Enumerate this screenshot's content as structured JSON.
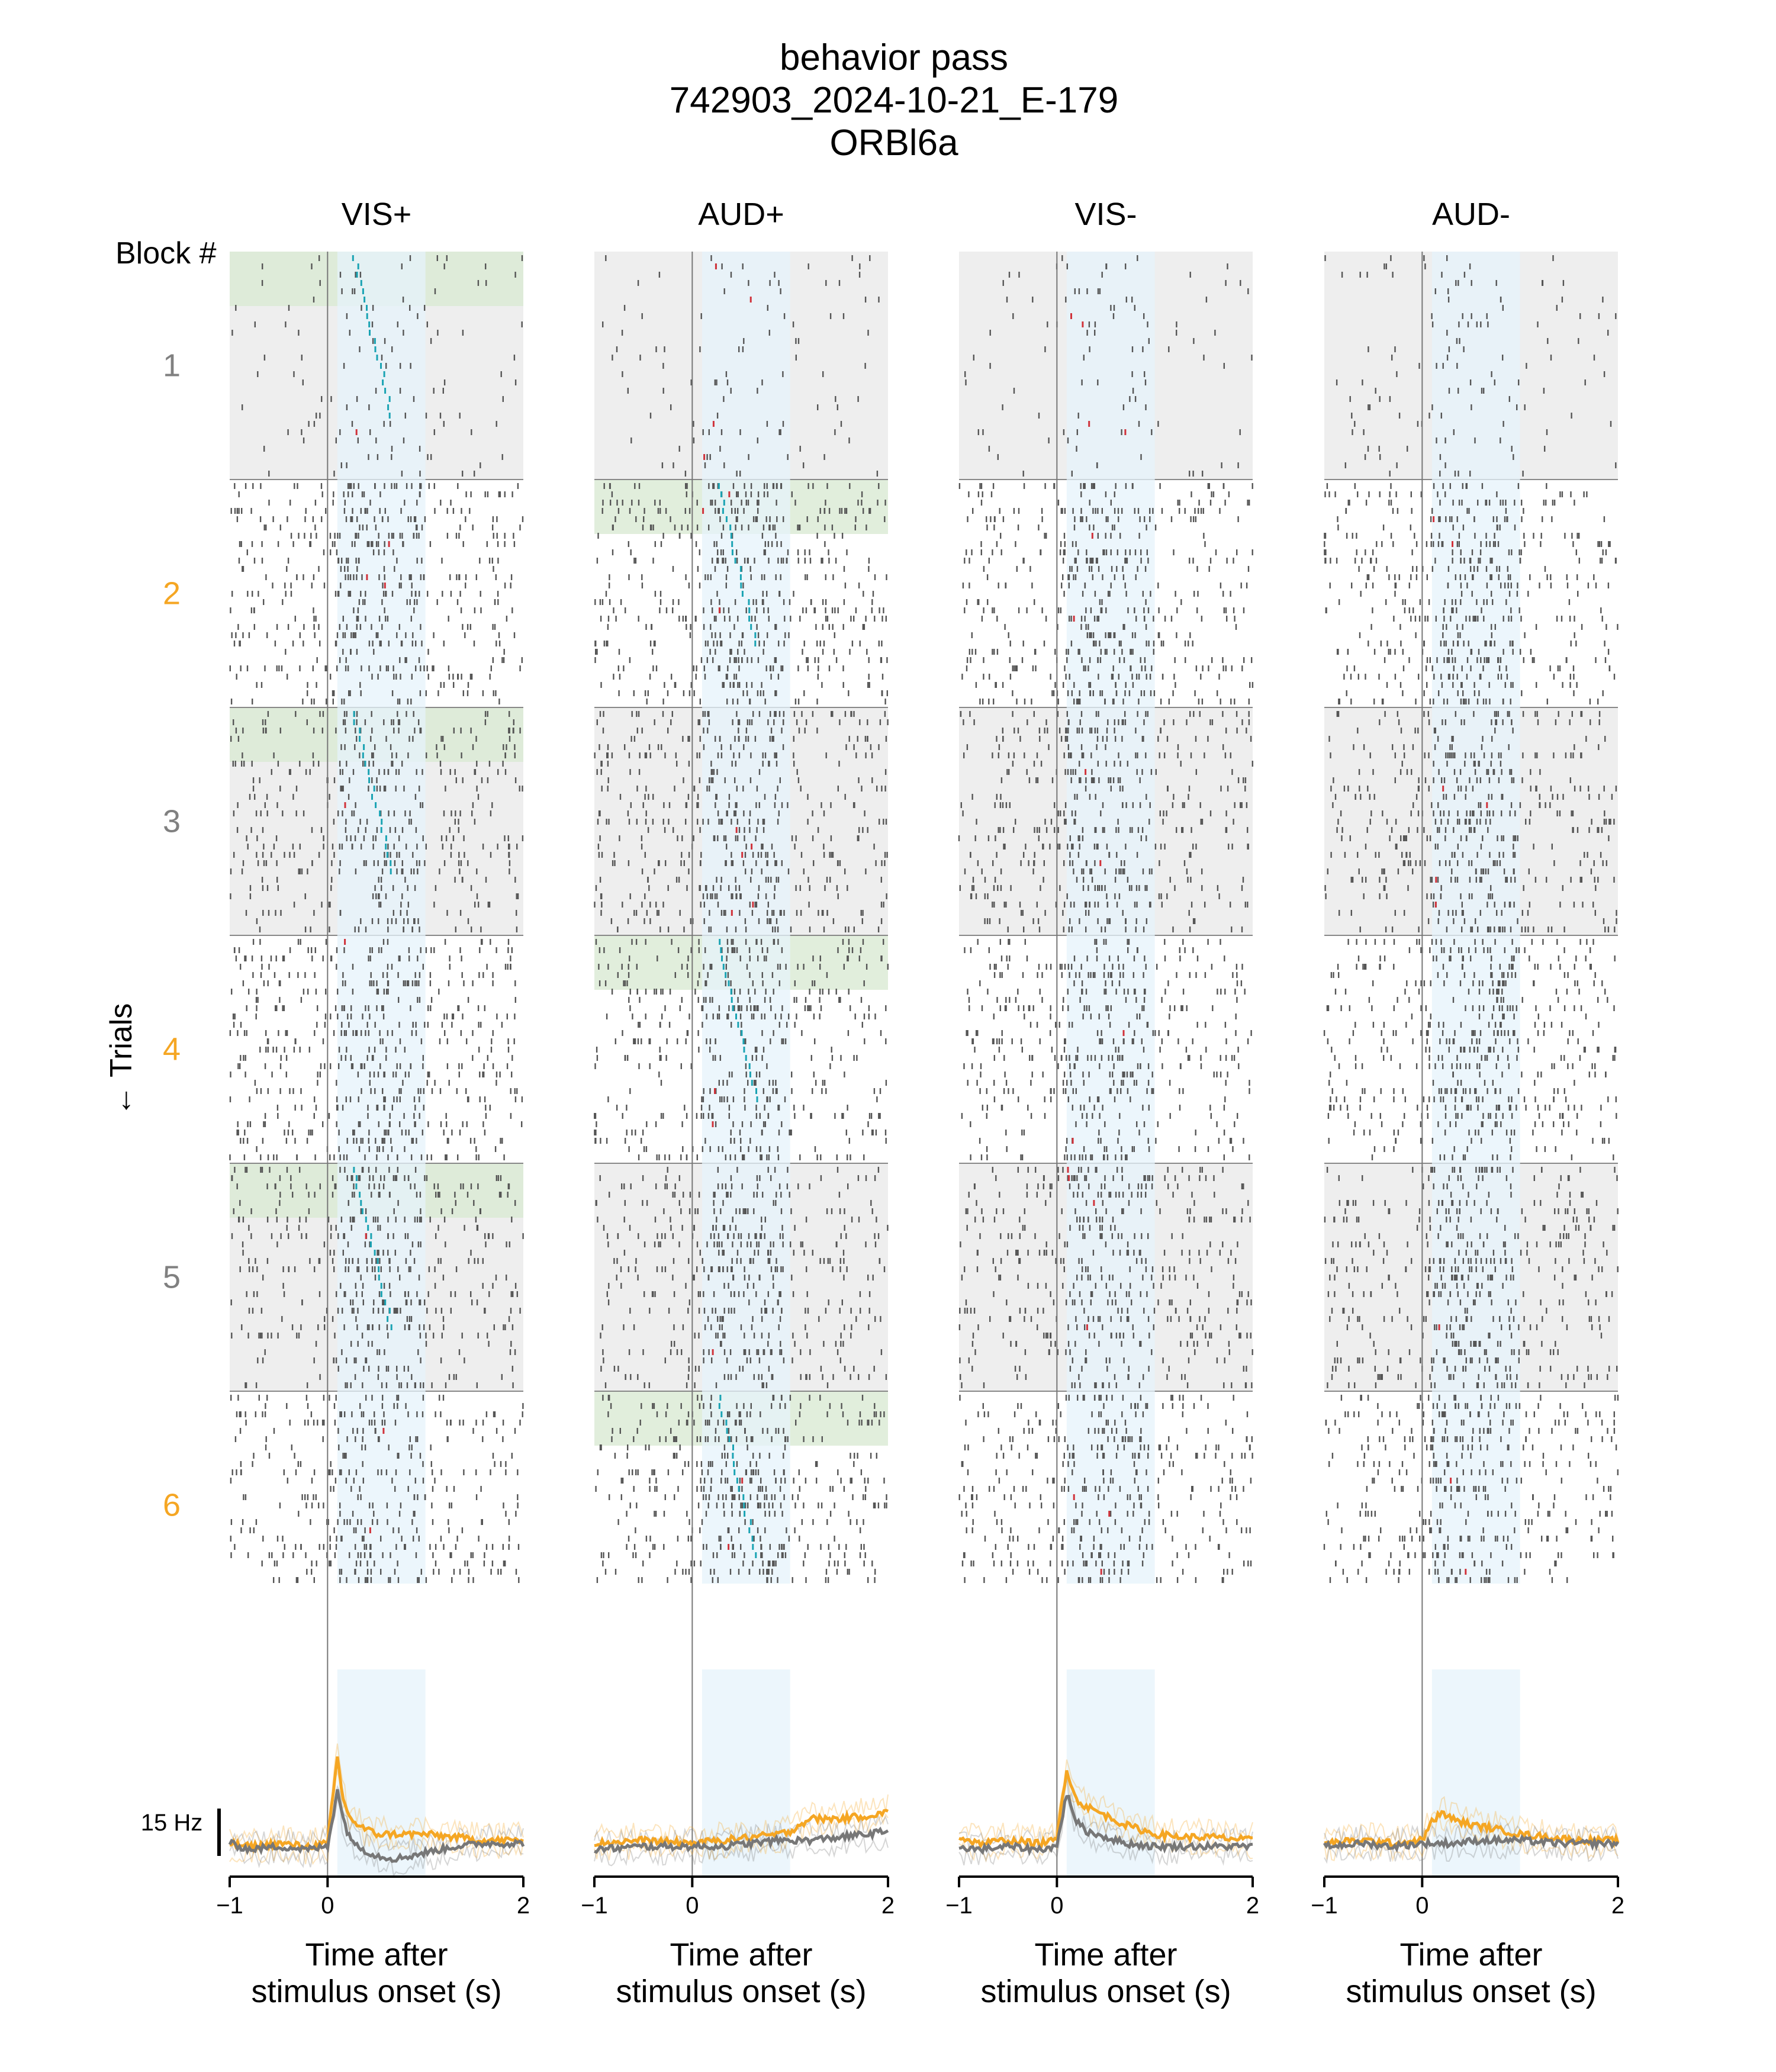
{
  "figure": {
    "title_lines": [
      "behavior pass",
      "742903_2024-10-21_E-179",
      "ORBl6a"
    ],
    "block_header": "Block #",
    "trials_label": "← Trials",
    "scale_bar_label": "15 Hz"
  },
  "chart_data": {
    "type": "line",
    "subtype": "raster-with-psth",
    "xlabel": "Time after\nstimulus onset (s)",
    "xlim": [
      -1,
      2
    ],
    "xticks": [
      -1,
      0,
      2
    ],
    "xtick_labels": [
      "−1",
      "0",
      "2"
    ],
    "block_labels": [
      "1",
      "2",
      "3",
      "4",
      "5",
      "6"
    ],
    "block_label_colors": [
      "#808080",
      "#f5a623",
      "#808080",
      "#f5a623",
      "#808080",
      "#f5a623"
    ],
    "colors": {
      "orange": "#f5a623",
      "gray": "#777777",
      "stim_window": "#e6f3fb",
      "gray_block_bg": "#eeeeee",
      "rewarded_bg": "#d9ead3",
      "spike": "#555555",
      "lick_cyan": "#1aa3b3",
      "lick_red": "#d0323a"
    },
    "stim_window_s": [
      0.1,
      1.0
    ],
    "panels": [
      {
        "title": "VIS+",
        "green_blocks": [
          1,
          3,
          5
        ],
        "series": [
          {
            "color": "orange",
            "x": [
              -1,
              -0.8,
              -0.5,
              -0.2,
              0,
              0.05,
              0.1,
              0.15,
              0.2,
              0.3,
              0.5,
              0.7,
              1.0,
              1.3,
              1.6,
              2.0
            ],
            "y": [
              6,
              5,
              6,
              5,
              6,
              20,
              34,
              22,
              16,
              12,
              9,
              9,
              9,
              8,
              7,
              7
            ]
          },
          {
            "color": "gray",
            "x": [
              -1,
              -0.8,
              -0.5,
              -0.2,
              0,
              0.05,
              0.1,
              0.15,
              0.2,
              0.3,
              0.5,
              0.7,
              1.0,
              1.3,
              1.6,
              2.0
            ],
            "y": [
              6,
              4,
              5,
              4,
              5,
              14,
              24,
              15,
              10,
              5,
              2,
              1,
              3,
              5,
              6,
              6
            ]
          }
        ]
      },
      {
        "title": "AUD+",
        "green_blocks": [
          2,
          4,
          6
        ],
        "series": [
          {
            "color": "orange",
            "x": [
              -1,
              -0.5,
              0,
              0.3,
              0.6,
              0.9,
              1.0,
              1.2,
              1.5,
              1.8,
              2.0
            ],
            "y": [
              6,
              7,
              6,
              7,
              8,
              9,
              10,
              14,
              14,
              15,
              16
            ]
          },
          {
            "color": "gray",
            "x": [
              -1,
              -0.5,
              0,
              0.3,
              0.6,
              0.9,
              1.2,
              1.5,
              1.8,
              2.0
            ],
            "y": [
              4,
              5,
              5,
              5,
              6,
              7,
              7,
              8,
              9,
              10
            ]
          }
        ]
      },
      {
        "title": "VIS-",
        "green_blocks": [],
        "series": [
          {
            "color": "orange",
            "x": [
              -1,
              -0.8,
              -0.5,
              -0.2,
              0,
              0.05,
              0.1,
              0.15,
              0.2,
              0.3,
              0.5,
              0.7,
              1.0,
              1.3,
              1.6,
              2.0
            ],
            "y": [
              8,
              6,
              7,
              6,
              7,
              20,
              30,
              25,
              20,
              18,
              15,
              12,
              9,
              8,
              8,
              7
            ]
          },
          {
            "color": "gray",
            "x": [
              -1,
              -0.8,
              -0.5,
              -0.2,
              0,
              0.05,
              0.1,
              0.15,
              0.2,
              0.3,
              0.5,
              0.7,
              1.0,
              1.3,
              1.6,
              2.0
            ],
            "y": [
              5,
              4,
              5,
              4,
              5,
              14,
              22,
              18,
              13,
              10,
              8,
              6,
              5,
              5,
              5,
              5
            ]
          }
        ]
      },
      {
        "title": "AUD-",
        "green_blocks": [],
        "series": [
          {
            "color": "orange",
            "x": [
              -1,
              -0.6,
              -0.3,
              0,
              0.1,
              0.2,
              0.3,
              0.5,
              0.7,
              1.0,
              1.3,
              1.6,
              2.0
            ],
            "y": [
              6,
              7,
              6,
              7,
              13,
              16,
              14,
              12,
              11,
              9,
              8,
              7,
              7
            ]
          },
          {
            "color": "gray",
            "x": [
              -1,
              -0.6,
              -0.3,
              0,
              0.3,
              0.6,
              1.0,
              1.4,
              1.8,
              2.0
            ],
            "y": [
              5,
              6,
              5,
              6,
              6,
              7,
              7,
              6,
              6,
              6
            ]
          }
        ]
      }
    ]
  }
}
